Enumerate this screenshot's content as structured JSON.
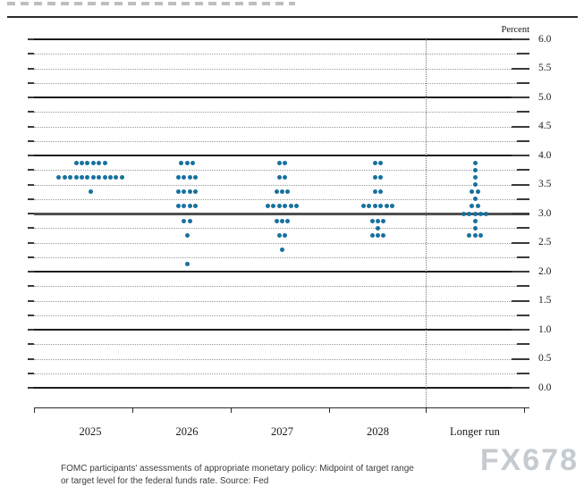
{
  "chart_data": {
    "type": "scatter",
    "subtype": "fomc-dot-plot",
    "unit_label": "Percent",
    "x_categories": [
      "2025",
      "2026",
      "2027",
      "2028",
      "Longer run"
    ],
    "y_axis": {
      "min": 0.0,
      "max": 6.0,
      "labeled_step": 0.5,
      "minor_gridline_step": 0.25,
      "tick_labels": [
        "6.0",
        "5.5",
        "5.0",
        "4.5",
        "4.0",
        "3.5",
        "3.0",
        "2.5",
        "2.0",
        "1.5",
        "1.0",
        "0.5",
        "0.0"
      ],
      "solid_gridlines": [
        6.0,
        5.0,
        4.0,
        3.0,
        2.0,
        1.0,
        0.0
      ],
      "emphasized_gridline": 3.0,
      "grid": true
    },
    "separator_after_category": "2028",
    "columns": [
      {
        "category": "2025",
        "dots": [
          {
            "rate": 3.875,
            "count": 6
          },
          {
            "rate": 3.625,
            "count": 12
          },
          {
            "rate": 3.375,
            "count": 1
          }
        ]
      },
      {
        "category": "2026",
        "dots": [
          {
            "rate": 3.875,
            "count": 3
          },
          {
            "rate": 3.625,
            "count": 4
          },
          {
            "rate": 3.375,
            "count": 4
          },
          {
            "rate": 3.125,
            "count": 4
          },
          {
            "rate": 2.875,
            "count": 2
          },
          {
            "rate": 2.625,
            "count": 1
          },
          {
            "rate": 2.125,
            "count": 1
          }
        ]
      },
      {
        "category": "2027",
        "dots": [
          {
            "rate": 3.875,
            "count": 2
          },
          {
            "rate": 3.625,
            "count": 2
          },
          {
            "rate": 3.375,
            "count": 3
          },
          {
            "rate": 3.125,
            "count": 6
          },
          {
            "rate": 2.875,
            "count": 3
          },
          {
            "rate": 2.625,
            "count": 2
          },
          {
            "rate": 2.375,
            "count": 1
          }
        ]
      },
      {
        "category": "2028",
        "dots": [
          {
            "rate": 3.875,
            "count": 2
          },
          {
            "rate": 3.625,
            "count": 2
          },
          {
            "rate": 3.375,
            "count": 2
          },
          {
            "rate": 3.125,
            "count": 6
          },
          {
            "rate": 2.875,
            "count": 3
          },
          {
            "rate": 2.75,
            "count": 1
          },
          {
            "rate": 2.625,
            "count": 3
          }
        ]
      },
      {
        "category": "Longer run",
        "dots": [
          {
            "rate": 3.875,
            "count": 1
          },
          {
            "rate": 3.75,
            "count": 1
          },
          {
            "rate": 3.625,
            "count": 1
          },
          {
            "rate": 3.5,
            "count": 1
          },
          {
            "rate": 3.375,
            "count": 2
          },
          {
            "rate": 3.25,
            "count": 1
          },
          {
            "rate": 3.125,
            "count": 2
          },
          {
            "rate": 3.0,
            "count": 5
          },
          {
            "rate": 2.875,
            "count": 1
          },
          {
            "rate": 2.75,
            "count": 1
          },
          {
            "rate": 2.625,
            "count": 3
          }
        ]
      }
    ]
  },
  "colors": {
    "dot": "#17719f",
    "gridline_minor": "#9a9a9a",
    "gridline_major": "#1c1c1c",
    "emphasized_line": "#4f4f4f",
    "watermark": "#c4cbd1"
  },
  "caption": {
    "line1": "FOMC participants' assessments of appropriate monetary policy: Midpoint of target range",
    "line2": "or target level for the federal funds rate. Source: Fed"
  },
  "watermark": "FX678"
}
